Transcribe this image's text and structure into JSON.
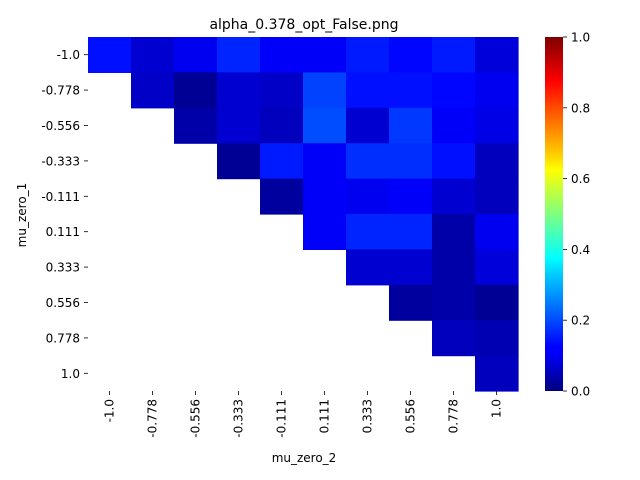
{
  "chart_data": {
    "type": "heatmap",
    "title": "alpha_0.378_opt_False.png",
    "xlabel": "mu_zero_2",
    "ylabel": "mu_zero_1",
    "x_categories": [
      "-1.0",
      "-0.778",
      "-0.556",
      "-0.333",
      "-0.111",
      "0.111",
      "0.333",
      "0.556",
      "0.778",
      "1.0"
    ],
    "y_categories": [
      "-1.0",
      "-0.778",
      "-0.556",
      "-0.333",
      "-0.111",
      "0.111",
      "0.333",
      "0.556",
      "0.778",
      "1.0"
    ],
    "colormap": "jet",
    "vmin": 0.0,
    "vmax": 1.0,
    "colorbar_ticks": [
      "0.0",
      "0.2",
      "0.4",
      "0.6",
      "0.8",
      "1.0"
    ],
    "values": [
      [
        0.14,
        0.08,
        0.11,
        0.16,
        0.12,
        0.12,
        0.15,
        0.13,
        0.15,
        0.09
      ],
      [
        null,
        0.07,
        0.02,
        0.08,
        0.07,
        0.19,
        0.14,
        0.14,
        0.13,
        0.11
      ],
      [
        null,
        null,
        0.04,
        0.08,
        0.06,
        0.2,
        0.08,
        0.18,
        0.12,
        0.1
      ],
      [
        null,
        null,
        null,
        0.02,
        0.15,
        0.12,
        0.17,
        0.17,
        0.14,
        0.06
      ],
      [
        null,
        null,
        null,
        null,
        0.03,
        0.12,
        0.11,
        0.12,
        0.08,
        0.06
      ],
      [
        null,
        null,
        null,
        null,
        null,
        0.12,
        0.16,
        0.16,
        0.04,
        0.11
      ],
      [
        null,
        null,
        null,
        null,
        null,
        null,
        0.08,
        0.08,
        0.04,
        0.09
      ],
      [
        null,
        null,
        null,
        null,
        null,
        null,
        null,
        0.03,
        0.04,
        0.02
      ],
      [
        null,
        null,
        null,
        null,
        null,
        null,
        null,
        null,
        0.06,
        0.05
      ],
      [
        null,
        null,
        null,
        null,
        null,
        null,
        null,
        null,
        null,
        0.06
      ]
    ]
  }
}
